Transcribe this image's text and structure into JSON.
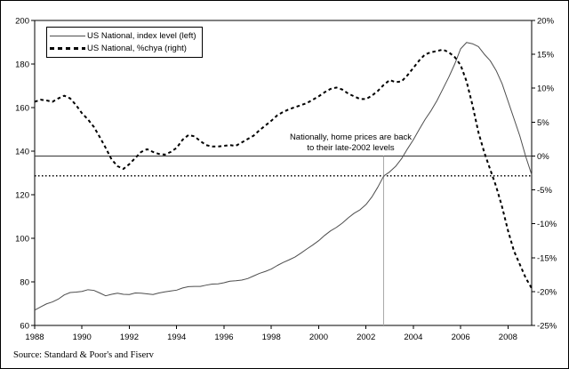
{
  "window": {
    "background": "#ffffff",
    "border_color": "#000000"
  },
  "source": {
    "text": "Source: Standard & Poor's and Fiserv"
  },
  "chart_data": {
    "type": "line",
    "title": "",
    "xlabel": "",
    "ylabel_left": "",
    "ylabel_right": "",
    "grid": "off",
    "x_axis": {
      "range": [
        1988,
        2009.0
      ],
      "ticks": [
        1988,
        1990,
        1992,
        1994,
        1996,
        1998,
        2000,
        2002,
        2004,
        2006,
        2008
      ],
      "tick_labels": [
        "1988",
        "1990",
        "1992",
        "1994",
        "1996",
        "1998",
        "2000",
        "2002",
        "2004",
        "2006",
        "2008"
      ]
    },
    "y_left": {
      "range": [
        60,
        200
      ],
      "ticks": [
        200,
        180,
        160,
        140,
        120,
        100,
        80,
        60
      ],
      "tick_labels": [
        "200",
        "180",
        "160",
        "140",
        "120",
        "100",
        "80",
        "60"
      ]
    },
    "y_right": {
      "range": [
        -25,
        20
      ],
      "ticks": [
        20,
        15,
        10,
        5,
        0,
        -5,
        -10,
        -15,
        -20,
        -25
      ],
      "tick_labels": [
        "20%",
        "15%",
        "10%",
        "5%",
        "0%",
        "-5%",
        "-10%",
        "-15%",
        "-20%",
        "-25%"
      ]
    },
    "legend": {
      "position": "top-left",
      "entries": [
        {
          "label": "US National, index level (left)",
          "style": "solid",
          "color": "#4d4d4d"
        },
        {
          "label": "US National, %chya (right)",
          "style": "dashed",
          "color": "#000000"
        }
      ]
    },
    "annotation": {
      "line1": "Nationally, home prices are back",
      "line2": "to their late-2002 levels"
    },
    "x_start": 1988,
    "x_step": 0.25,
    "series": [
      {
        "name": "US National, index level (left)",
        "axis": "left",
        "style": "solid",
        "color": "#4d4d4d",
        "values": [
          67.0,
          68.5,
          69.9,
          70.8,
          72.1,
          74.0,
          75.1,
          75.3,
          75.6,
          76.4,
          76.1,
          74.9,
          73.6,
          74.3,
          74.8,
          74.3,
          74.2,
          74.9,
          74.8,
          74.5,
          74.2,
          74.9,
          75.4,
          75.8,
          76.2,
          77.2,
          77.8,
          77.9,
          77.9,
          78.5,
          79.0,
          79.1,
          79.6,
          80.3,
          80.5,
          80.8,
          81.5,
          82.7,
          83.9,
          84.8,
          85.9,
          87.5,
          88.9,
          90.1,
          91.4,
          93.2,
          95.1,
          96.9,
          98.9,
          101.3,
          103.4,
          105.0,
          107.0,
          109.4,
          111.5,
          113.1,
          115.5,
          119.0,
          123.5,
          128.6,
          130.5,
          133.0,
          136.5,
          141.0,
          145.2,
          150.0,
          154.6,
          158.6,
          163.2,
          168.6,
          174.0,
          180.0,
          187.0,
          189.9,
          189.3,
          188.0,
          184.5,
          181.5,
          177.0,
          171.0,
          163.0,
          155.0,
          147.0,
          137.5,
          129.2
        ]
      },
      {
        "name": "US National, %chya (right)",
        "axis": "right",
        "style": "dashed",
        "color": "#000000",
        "values": [
          8.0,
          8.3,
          8.2,
          8.0,
          8.5,
          8.9,
          8.5,
          7.5,
          6.3,
          5.4,
          4.3,
          2.8,
          1.2,
          -0.5,
          -1.5,
          -1.9,
          -1.2,
          -0.3,
          0.6,
          1.0,
          0.6,
          0.3,
          0.2,
          0.6,
          1.2,
          2.4,
          3.1,
          2.9,
          2.2,
          1.6,
          1.4,
          1.4,
          1.5,
          1.6,
          1.5,
          2.0,
          2.5,
          3.0,
          3.8,
          4.5,
          5.2,
          6.0,
          6.5,
          6.9,
          7.2,
          7.5,
          7.8,
          8.3,
          8.8,
          9.4,
          9.9,
          10.1,
          9.8,
          9.2,
          8.8,
          8.4,
          8.4,
          8.9,
          9.6,
          10.5,
          11.2,
          10.9,
          11.0,
          11.9,
          13.0,
          14.1,
          15.0,
          15.3,
          15.5,
          15.7,
          15.3,
          14.6,
          13.4,
          11.0,
          7.5,
          3.5,
          0.5,
          -2.0,
          -4.5,
          -7.5,
          -11.0,
          -14.0,
          -16.0,
          -18.0,
          -19.5
        ]
      }
    ],
    "reference_lines": [
      {
        "orientation": "horizontal",
        "axis": "right",
        "value": 0,
        "style": "solid",
        "color": "#333333"
      },
      {
        "orientation": "horizontal",
        "axis": "left",
        "value": 128.6,
        "style": "dotted",
        "color": "#000000"
      },
      {
        "orientation": "vertical",
        "x": 2002.75,
        "y_from_axis": "right",
        "y_from_value": 0,
        "style": "solid",
        "color": "#aaaaaa"
      }
    ]
  }
}
